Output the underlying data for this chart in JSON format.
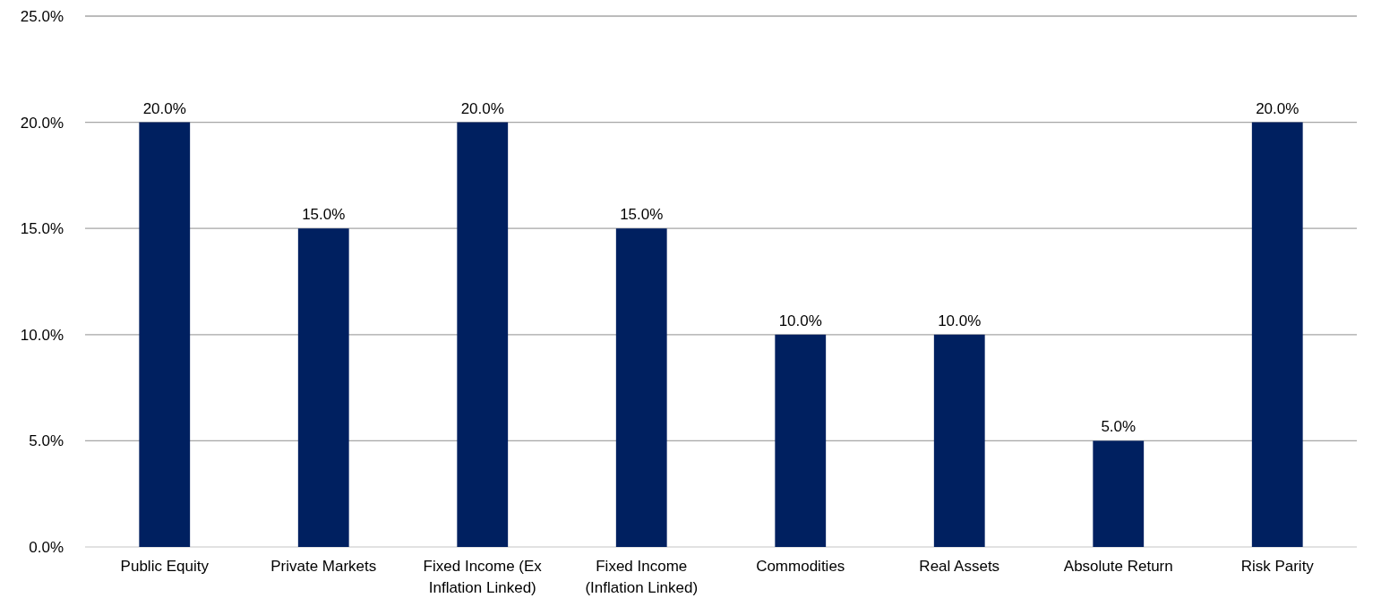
{
  "chart_data": {
    "type": "bar",
    "categories": [
      "Public Equity",
      "Private Markets",
      "Fixed Income (Ex Inflation Linked)",
      "Fixed Income (Inflation Linked)",
      "Commodities",
      "Real Assets",
      "Absolute Return",
      "Risk Parity"
    ],
    "values": [
      20,
      15,
      20,
      15,
      10,
      10,
      5,
      20
    ],
    "value_labels": [
      "20.0%",
      "15.0%",
      "20.0%",
      "15.0%",
      "10.0%",
      "10.0%",
      "5.0%",
      "20.0%"
    ],
    "color": "#002060",
    "ylim": [
      0,
      25
    ],
    "yticks": [
      {
        "value": 0,
        "label": "0.0%"
      },
      {
        "value": 5,
        "label": "5.0%"
      },
      {
        "value": 10,
        "label": "10.0%"
      },
      {
        "value": 15,
        "label": "15.0%"
      },
      {
        "value": 20,
        "label": "20.0%"
      },
      {
        "value": 25,
        "label": "25.0%"
      }
    ],
    "grid": "y"
  }
}
